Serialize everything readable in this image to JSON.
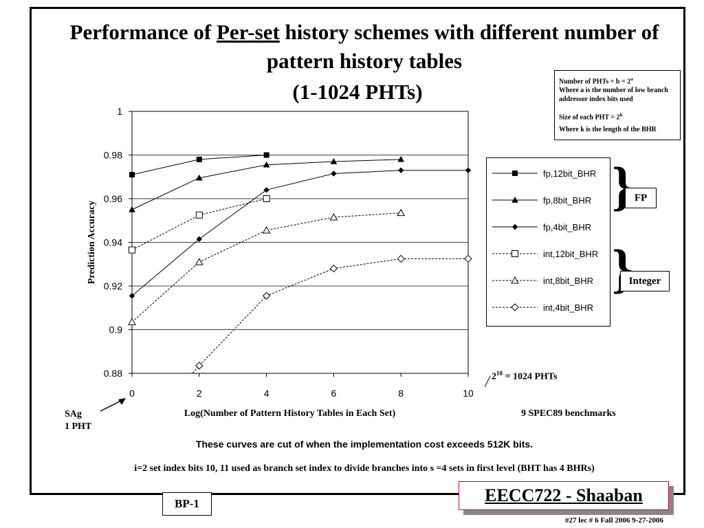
{
  "slide": {
    "title_pre": "Performance of ",
    "title_underlined": "Per-set",
    "title_post": " history schemes with different number of pattern history tables",
    "subtitle": "(1-1024 PHTs)",
    "note_line1": "Number of PHTs = b = 2",
    "note_line1_sup": "a",
    "note_line2": "Where a is the number of low branch addressor index bits used",
    "note_line3": "Size of each PHT = 2",
    "note_line3_sup": "k",
    "note_line4": "Where k is the length of the BHR",
    "group_fp": "FP",
    "group_integer": "Integer",
    "anno_1024_base": "2",
    "anno_1024_sup": "10",
    "anno_1024_rest": " = 1024 PHTs",
    "anno_sag": "SAg",
    "anno_1pht": "1 PHT",
    "anno_benchmarks": "9 SPEC89 benchmarks",
    "caption1": "These curves are cut of when the implementation cost exceeds 512K bits.",
    "caption2": "i=2 set index bits 10, 11 used as branch set index to divide branches into s =4  sets  in first level (BHT has 4 BHRs)",
    "bp_label": "BP-1",
    "brand": "EECC722 - Shaaban",
    "footer": "#27   lec # 6   Fall 2006   9-27-2006"
  },
  "chart_data": {
    "type": "line",
    "title": "",
    "xlabel": "Log(Number of Pattern History Tables in Each Set)",
    "ylabel": "Prediction Accuracy",
    "xlim": [
      0,
      10
    ],
    "ylim": [
      0.88,
      1
    ],
    "x_ticks": [
      "0",
      "2",
      "4",
      "6",
      "8",
      "10"
    ],
    "y_ticks": [
      "0.88",
      "0.9",
      "0.92",
      "0.94",
      "0.96",
      "0.98",
      "1"
    ],
    "grid": "horizontal",
    "legend_position": "right",
    "series": [
      {
        "name": "fp,12bit_BHR",
        "marker": "square-filled",
        "dashed": false,
        "x": [
          0,
          2,
          4
        ],
        "y": [
          0.971,
          0.978,
          0.98
        ]
      },
      {
        "name": "fp,8bit_BHR",
        "marker": "triangle-filled",
        "dashed": false,
        "x": [
          0,
          2,
          4,
          6,
          8
        ],
        "y": [
          0.955,
          0.9695,
          0.9755,
          0.977,
          0.978
        ]
      },
      {
        "name": "fp,4bit_BHR",
        "marker": "diamond-filled",
        "dashed": false,
        "x": [
          0,
          2,
          4,
          6,
          8,
          10
        ],
        "y": [
          0.9155,
          0.9415,
          0.964,
          0.9715,
          0.973,
          0.973
        ]
      },
      {
        "name": "int,12bit_BHR",
        "marker": "square-open",
        "dashed": true,
        "x": [
          0,
          2,
          4
        ],
        "y": [
          0.9365,
          0.9525,
          0.96
        ]
      },
      {
        "name": "int,8bit_BHR",
        "marker": "triangle-open",
        "dashed": true,
        "x": [
          0,
          2,
          4,
          6,
          8
        ],
        "y": [
          0.9035,
          0.931,
          0.9455,
          0.9515,
          0.9535
        ]
      },
      {
        "name": "int,4bit_BHR",
        "marker": "diamond-open",
        "dashed": true,
        "x": [
          2,
          4,
          6,
          8,
          10
        ],
        "y": [
          0.8835,
          0.9155,
          0.928,
          0.9325,
          0.9325
        ],
        "x_start_cut": 1.8
      }
    ]
  }
}
